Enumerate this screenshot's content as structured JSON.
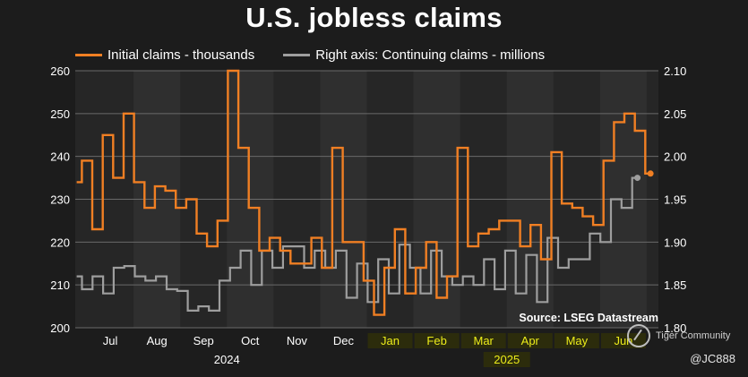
{
  "title": "U.S. jobless claims",
  "legend": {
    "initial": {
      "label": "Initial claims - thousands",
      "color": "#f07f23"
    },
    "continuing": {
      "label": "Right axis: Continuing claims - millions",
      "color": "#9e9e9e"
    }
  },
  "source": "Source: LSEG Datastream",
  "watermark": "Tiger Community",
  "user_handle": "@JC888",
  "chart_data": {
    "type": "line",
    "title": "U.S. jobless claims",
    "left_axis": {
      "label": "Initial claims - thousands",
      "ylim": [
        200,
        260
      ],
      "ticks": [
        200,
        210,
        220,
        230,
        240,
        250,
        260
      ]
    },
    "right_axis": {
      "label": "Continuing claims - millions",
      "ylim": [
        1.8,
        2.1
      ],
      "ticks": [
        "1.80",
        "1.85",
        "1.90",
        "1.95",
        "2.00",
        "2.05",
        "2.10"
      ]
    },
    "months": [
      {
        "label": "Jul",
        "highlight": false
      },
      {
        "label": "Aug",
        "highlight": false
      },
      {
        "label": "Sep",
        "highlight": false
      },
      {
        "label": "Oct",
        "highlight": false
      },
      {
        "label": "Nov",
        "highlight": false
      },
      {
        "label": "Dec",
        "highlight": false
      },
      {
        "label": "Jan",
        "highlight": true
      },
      {
        "label": "Feb",
        "highlight": true
      },
      {
        "label": "Mar",
        "highlight": true
      },
      {
        "label": "Apr",
        "highlight": true
      },
      {
        "label": "May",
        "highlight": true
      },
      {
        "label": "Jun",
        "highlight": true
      }
    ],
    "years": [
      {
        "label": "2024",
        "center_month": 2.5,
        "highlight": false
      },
      {
        "label": "2025",
        "center_month": 8.5,
        "highlight": true
      }
    ],
    "x_start": -0.75,
    "x_end": 11.75,
    "highlight_color": "#ecec1a",
    "series": [
      {
        "name": "Initial claims - thousands",
        "axis": "left",
        "color": "#f07f23",
        "values": [
          234,
          239,
          223,
          245,
          235,
          250,
          234,
          228,
          233,
          232,
          228,
          230,
          222,
          219,
          225,
          260,
          242,
          228,
          218,
          221,
          218,
          215,
          215,
          221,
          214,
          242,
          220,
          220,
          211,
          203,
          214,
          223,
          208,
          214,
          220,
          207,
          212,
          242,
          219,
          222,
          223,
          225,
          225,
          219,
          224,
          216,
          241,
          229,
          228,
          226,
          224,
          239,
          248,
          250,
          246,
          236
        ]
      },
      {
        "name": "Continuing claims - millions",
        "axis": "right",
        "color": "#9e9e9e",
        "values": [
          1.86,
          1.845,
          1.86,
          1.84,
          1.87,
          1.872,
          1.86,
          1.855,
          1.86,
          1.845,
          1.843,
          1.82,
          1.825,
          1.82,
          1.855,
          1.87,
          1.89,
          1.85,
          1.89,
          1.87,
          1.895,
          1.895,
          1.87,
          1.89,
          1.87,
          1.89,
          1.835,
          1.875,
          1.83,
          1.88,
          1.84,
          1.897,
          1.87,
          1.84,
          1.89,
          1.86,
          1.85,
          1.86,
          1.85,
          1.88,
          1.845,
          1.89,
          1.84,
          1.885,
          1.83,
          1.905,
          1.87,
          1.88,
          1.88,
          1.91,
          1.9,
          1.95,
          1.94,
          1.975
        ]
      }
    ]
  }
}
